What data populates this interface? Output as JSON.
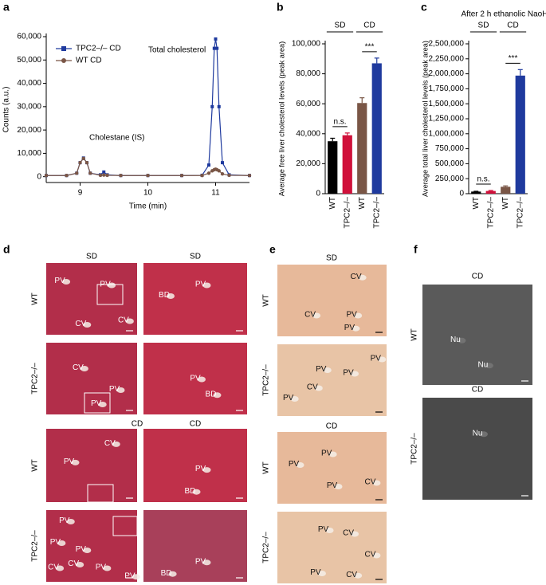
{
  "chart_data": [
    {
      "type": "line",
      "panel": "a",
      "xlabel": "Time (min)",
      "ylabel": "Counts (a.u.)",
      "annotations": [
        "Total cholesterol",
        "Cholestane (IS)"
      ],
      "x": [
        8.5,
        8.8,
        8.95,
        9.0,
        9.05,
        9.1,
        9.15,
        9.3,
        9.35,
        9.4,
        9.6,
        10.0,
        10.5,
        10.8,
        10.9,
        10.95,
        10.98,
        11.0,
        11.02,
        11.05,
        11.1,
        11.2,
        11.5
      ],
      "series": [
        {
          "name": "TPC2–/– CD",
          "color": "#1f3a9e",
          "marker": "square",
          "values": [
            500,
            500,
            1500,
            6000,
            8000,
            6000,
            1500,
            800,
            2000,
            800,
            500,
            500,
            500,
            600,
            5000,
            30000,
            55000,
            59000,
            55000,
            30000,
            6000,
            800,
            500
          ]
        },
        {
          "name": "WT CD",
          "color": "#7a5646",
          "marker": "circle",
          "values": [
            500,
            500,
            1500,
            6000,
            7800,
            6000,
            1500,
            600,
            700,
            600,
            500,
            500,
            500,
            500,
            1500,
            2500,
            3000,
            3200,
            3000,
            2500,
            1200,
            600,
            500
          ]
        }
      ],
      "xlim": [
        8.5,
        11.5
      ],
      "xticks": [
        9,
        10,
        11
      ],
      "ylim": [
        -2500,
        60000
      ],
      "yticks": [
        0,
        {
          "value": 10000,
          "label": "10,000"
        },
        {
          "value": 20000,
          "label": "20,000"
        },
        {
          "value": 30000,
          "label": "30,000"
        },
        {
          "value": 40000,
          "label": "40,000"
        },
        {
          "value": 50000,
          "label": "50,000"
        },
        {
          "value": 60000,
          "label": "60,000"
        }
      ],
      "legend": "upper left"
    },
    {
      "type": "bar",
      "panel": "b",
      "ylabel": "Average free liver cholesterol levels (peak area)",
      "groups": [
        "SD",
        "CD"
      ],
      "significance": [
        "n.s.",
        "***"
      ],
      "categories": [
        "WT",
        "TPC2–/–",
        "WT",
        "TPC2–/–"
      ],
      "values": [
        35000,
        39000,
        60500,
        87000
      ],
      "errors": [
        2000,
        1500,
        3500,
        3500
      ],
      "colors": [
        "#000000",
        "#d0103a",
        "#7a5646",
        "#1f3a9e"
      ],
      "ylim": [
        0,
        100000
      ],
      "yticks": [
        0,
        {
          "value": 20000,
          "label": "20,000"
        },
        {
          "value": 40000,
          "label": "40,000"
        },
        {
          "value": 60000,
          "label": "60,000"
        },
        {
          "value": 80000,
          "label": "80,000"
        },
        {
          "value": 100000,
          "label": "100,000"
        }
      ]
    },
    {
      "type": "bar",
      "panel": "c",
      "title": "After 2 h ethanolic NaoH",
      "ylabel": "Average total liver cholesterol levels (peak area)",
      "groups": [
        "SD",
        "CD"
      ],
      "significance": [
        "n.s.",
        "***"
      ],
      "categories": [
        "WT",
        "TPC2–/–",
        "WT",
        "TPC2–/–"
      ],
      "values": [
        35000,
        45000,
        115000,
        1970000
      ],
      "errors": [
        5000,
        8000,
        15000,
        100000
      ],
      "colors": [
        "#000000",
        "#d0103a",
        "#7a5646",
        "#1f3a9e"
      ],
      "ylim": [
        0,
        2500000
      ],
      "yticks": [
        0,
        {
          "value": 250000,
          "label": "250,000"
        },
        {
          "value": 500000,
          "label": "500,000"
        },
        {
          "value": 750000,
          "label": "750,000"
        },
        {
          "value": 1000000,
          "label": "1,000,000"
        },
        {
          "value": 1250000,
          "label": "1,250,000"
        },
        {
          "value": 1500000,
          "label": "1,500,000"
        },
        {
          "value": 1750000,
          "label": "1,750,000"
        },
        {
          "value": 2000000,
          "label": "2,000,000"
        },
        {
          "value": 2250000,
          "label": "2,250,000"
        },
        {
          "value": 2500000,
          "label": "2,500,000"
        }
      ]
    }
  ],
  "panels": {
    "d": {
      "label": "d",
      "headers": [
        "SD",
        "SD",
        "CD",
        "CD"
      ],
      "rows": [
        "WT",
        "TPC2–/–",
        "WT",
        "TPC2–/–"
      ],
      "tiles": [
        [
          "PV",
          "PV",
          "CV",
          "CV"
        ],
        [
          "BD",
          "PV"
        ],
        [
          "CV",
          "PV",
          "PV"
        ],
        [
          "PV",
          "BD"
        ],
        [
          "CV",
          "PV"
        ],
        [
          "PV",
          "BD"
        ],
        [
          "PV",
          "PV",
          "PV",
          "CV",
          "CV",
          "PV",
          "PV"
        ],
        [
          "PV",
          "BD"
        ]
      ]
    },
    "e": {
      "label": "e",
      "headers": [
        "SD",
        "CD"
      ],
      "rows": [
        "WT",
        "TPC2–/–",
        "WT",
        "TPC2–/–"
      ],
      "tiles": [
        [
          "CV",
          "CV",
          "PV",
          "PV"
        ],
        [
          "PV",
          "PV",
          "PV",
          "CV",
          "PV"
        ],
        [
          "PV",
          "PV",
          "PV",
          "CV"
        ],
        [
          "PV",
          "CV",
          "PV",
          "CV",
          "CV"
        ]
      ]
    },
    "f": {
      "label": "f",
      "headers": [
        "CD",
        "CD"
      ],
      "rows": [
        "WT",
        "TPC2–/–"
      ],
      "tiles": [
        [
          "Nu",
          "Nu"
        ],
        [
          "Nu"
        ]
      ]
    }
  }
}
